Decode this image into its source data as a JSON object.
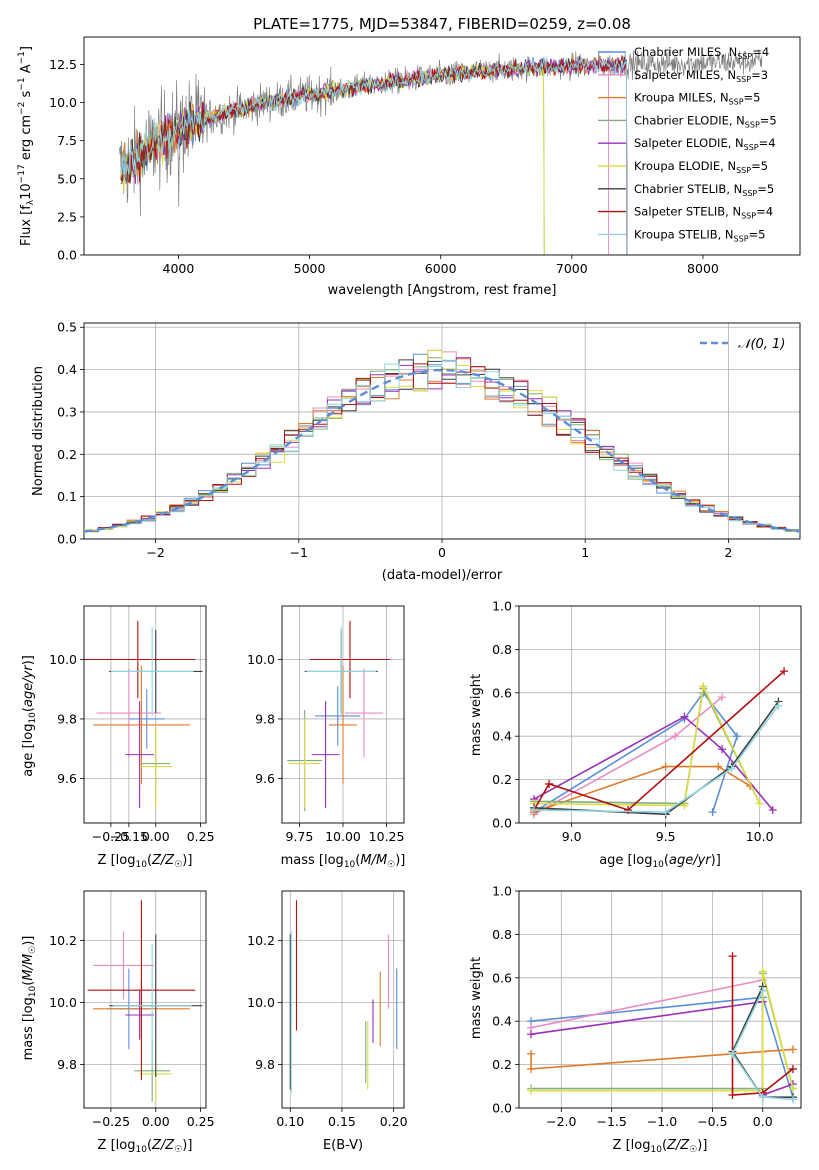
{
  "figure": {
    "title": "PLATE=1775, MJD=53847, FIBERID=0259, z=0.08"
  },
  "colors": {
    "Chabrier MILES": "#5a8fd8",
    "Salpeter MILES": "#e88cc4",
    "Kroupa MILES": "#e07b2a",
    "Chabrier ELODIE": "#7fae7f",
    "Salpeter ELODIE": "#9a2fb8",
    "Kroupa ELODIE": "#dcdc40",
    "Chabrier STELIB": "#404040",
    "Salpeter STELIB": "#b01010",
    "Kroupa STELIB": "#8fd6e0",
    "data": "#808080",
    "normal": "#5a8fd8",
    "grid": "#b0b0b0"
  },
  "chart_data": [
    {
      "id": "spectrum",
      "type": "line",
      "title": "PLATE=1775, MJD=53847, FIBERID=0259, z=0.08",
      "xlabel": "wavelength [Angstrom, rest frame]",
      "ylabel": "Flux [f_λ 10^-17 erg cm^-2 s^-1 A^-1]",
      "xlim": [
        3280,
        8740
      ],
      "ylim": [
        0,
        14.3
      ],
      "xticks": [
        4000,
        5000,
        6000,
        7000,
        8000
      ],
      "yticks": [
        0.0,
        2.5,
        5.0,
        7.5,
        10.0,
        12.5
      ],
      "grid": false,
      "legend_position": "top-right",
      "legend": [
        {
          "name": "Chabrier MILES",
          "nssp": "4"
        },
        {
          "name": "Salpeter MILES",
          "nssp": "3"
        },
        {
          "name": "Kroupa MILES",
          "nssp": "5"
        },
        {
          "name": "Chabrier ELODIE",
          "nssp": "5"
        },
        {
          "name": "Salpeter ELODIE",
          "nssp": "4"
        },
        {
          "name": "Kroupa ELODIE",
          "nssp": "5"
        },
        {
          "name": "Chabrier STELIB",
          "nssp": "5"
        },
        {
          "name": "Salpeter STELIB",
          "nssp": "4"
        },
        {
          "name": "Kroupa STELIB",
          "nssp": "5"
        }
      ],
      "continuum": {
        "x": [
          3550,
          3700,
          3900,
          4100,
          4300,
          4600,
          5000,
          5500,
          6000,
          6500,
          7000,
          7400,
          8000,
          8450
        ],
        "y": [
          5.5,
          6.5,
          7.8,
          8.6,
          9.2,
          9.9,
          10.5,
          11.2,
          11.8,
          12.2,
          12.4,
          12.5,
          12.6,
          12.7
        ]
      }
    },
    {
      "id": "residuals",
      "type": "line",
      "xlabel": "(data-model)/error",
      "ylabel": "Normed distribution",
      "xlim": [
        -2.5,
        2.5
      ],
      "ylim": [
        0,
        0.51
      ],
      "xticks": [
        -2,
        -1,
        0,
        1,
        2
      ],
      "yticks": [
        0.0,
        0.1,
        0.2,
        0.3,
        0.4,
        0.5
      ],
      "grid": true,
      "legend_position": "top-right",
      "legend": [
        "𝒩(0, 1)"
      ],
      "normal": {
        "mean": 0,
        "sigma": 1
      }
    },
    {
      "id": "age-vs-Z",
      "type": "scatter",
      "xlabel": "Z [log10(Z/Z☉)]",
      "ylabel": "age [log10(age/yr)]",
      "xlim": [
        -0.4,
        0.28
      ],
      "ylim": [
        9.45,
        10.18
      ],
      "xticks": [
        -0.25,
        -0.15,
        0.0,
        0.25
      ],
      "xticklabels": [
        "−0.25",
        "−0.15",
        "0.00",
        "0.25"
      ],
      "yticks": [
        9.6,
        9.8,
        10.0
      ],
      "grid": true,
      "points": [
        {
          "series": "Chabrier MILES",
          "x": -0.05,
          "y": 9.8,
          "xerr": 0.1,
          "yerr": 0.1
        },
        {
          "series": "Salpeter MILES",
          "x": -0.15,
          "y": 9.82,
          "xerr": 0.18,
          "yerr": 0.15
        },
        {
          "series": "Kroupa MILES",
          "x": -0.08,
          "y": 9.78,
          "xerr": 0.27,
          "yerr": 0.2
        },
        {
          "series": "Chabrier ELODIE",
          "x": 0.0,
          "y": 9.65,
          "xerr": 0.08,
          "yerr": 0.12
        },
        {
          "series": "Salpeter ELODIE",
          "x": -0.09,
          "y": 9.68,
          "xerr": 0.08,
          "yerr": 0.18
        },
        {
          "series": "Kroupa ELODIE",
          "x": 0.0,
          "y": 9.64,
          "xerr": 0.09,
          "yerr": 0.14
        },
        {
          "series": "Chabrier STELIB",
          "x": 0.0,
          "y": 9.96,
          "xerr": 0.26,
          "yerr": 0.14
        },
        {
          "series": "Salpeter STELIB",
          "x": -0.1,
          "y": 10.0,
          "xerr": 0.32,
          "yerr": 0.13
        },
        {
          "series": "Kroupa STELIB",
          "x": -0.02,
          "y": 9.96,
          "xerr": 0.23,
          "yerr": 0.15
        }
      ]
    },
    {
      "id": "age-vs-mass",
      "type": "scatter",
      "xlabel": "mass [log10(M/M☉)]",
      "xlim": [
        9.65,
        10.35
      ],
      "ylim": [
        9.45,
        10.18
      ],
      "xticks": [
        9.75,
        10.0,
        10.25
      ],
      "xticklabels": [
        "9.75",
        "10.00",
        "10.25"
      ],
      "yticks": [
        9.6,
        9.8,
        10.0
      ],
      "grid": true,
      "points": [
        {
          "series": "Chabrier MILES",
          "x": 9.97,
          "y": 9.81,
          "xerr": 0.13,
          "yerr": 0.1
        },
        {
          "series": "Salpeter MILES",
          "x": 10.12,
          "y": 9.82,
          "xerr": 0.11,
          "yerr": 0.15
        },
        {
          "series": "Kroupa MILES",
          "x": 10.0,
          "y": 9.78,
          "xerr": 0.08,
          "yerr": 0.2
        },
        {
          "series": "Chabrier ELODIE",
          "x": 9.78,
          "y": 9.66,
          "xerr": 0.1,
          "yerr": 0.17
        },
        {
          "series": "Salpeter ELODIE",
          "x": 9.9,
          "y": 9.68,
          "xerr": 0.08,
          "yerr": 0.18
        },
        {
          "series": "Kroupa ELODIE",
          "x": 9.78,
          "y": 9.65,
          "xerr": 0.09,
          "yerr": 0.15
        },
        {
          "series": "Chabrier STELIB",
          "x": 9.99,
          "y": 9.96,
          "xerr": 0.21,
          "yerr": 0.14
        },
        {
          "series": "Salpeter STELIB",
          "x": 10.04,
          "y": 10.0,
          "xerr": 0.23,
          "yerr": 0.13
        },
        {
          "series": "Kroupa STELIB",
          "x": 9.99,
          "y": 9.96,
          "xerr": 0.2,
          "yerr": 0.15
        }
      ]
    },
    {
      "id": "weight-vs-age",
      "type": "line",
      "xlabel": "age [log10(age/yr)]",
      "ylabel": "mass weight",
      "xlim": [
        8.72,
        10.22
      ],
      "ylim": [
        0,
        1
      ],
      "xticks": [
        9.0,
        9.5,
        10.0
      ],
      "yticks": [
        0.0,
        0.2,
        0.4,
        0.6,
        0.8,
        1.0
      ],
      "grid": true,
      "series": [
        {
          "name": "Chabrier MILES",
          "x": [
            8.8,
            9.6,
            9.7,
            9.88,
            9.75
          ],
          "y": [
            0.05,
            0.48,
            0.6,
            0.4,
            0.05
          ]
        },
        {
          "name": "Salpeter MILES",
          "x": [
            8.8,
            9.55,
            9.8
          ],
          "y": [
            0.04,
            0.4,
            0.58
          ]
        },
        {
          "name": "Kroupa MILES",
          "x": [
            8.8,
            9.5,
            9.78,
            9.95
          ],
          "y": [
            0.05,
            0.26,
            0.26,
            0.17
          ]
        },
        {
          "name": "Chabrier ELODIE",
          "x": [
            8.8,
            9.6,
            9.7,
            10.0
          ],
          "y": [
            0.1,
            0.09,
            0.62,
            0.09
          ]
        },
        {
          "name": "Salpeter ELODIE",
          "x": [
            8.8,
            9.6,
            9.8,
            10.07
          ],
          "y": [
            0.11,
            0.49,
            0.34,
            0.06
          ]
        },
        {
          "name": "Kroupa ELODIE",
          "x": [
            8.8,
            9.6,
            9.7,
            10.0
          ],
          "y": [
            0.09,
            0.08,
            0.63,
            0.09
          ]
        },
        {
          "name": "Chabrier STELIB",
          "x": [
            8.8,
            9.5,
            9.85,
            10.1
          ],
          "y": [
            0.07,
            0.04,
            0.26,
            0.56
          ]
        },
        {
          "name": "Salpeter STELIB",
          "x": [
            8.8,
            8.88,
            9.3,
            10.13
          ],
          "y": [
            0.06,
            0.18,
            0.06,
            0.7
          ]
        },
        {
          "name": "Kroupa STELIB",
          "x": [
            8.8,
            9.5,
            9.85,
            10.1
          ],
          "y": [
            0.06,
            0.05,
            0.25,
            0.54
          ]
        }
      ]
    },
    {
      "id": "mass-vs-Z",
      "type": "scatter",
      "xlabel": "Z [log10(Z/Z☉)]",
      "ylabel": "mass [log10(M/M☉)]",
      "xlim": [
        -0.4,
        0.28
      ],
      "ylim": [
        9.66,
        10.36
      ],
      "xticks": [
        -0.25,
        0.0,
        0.25
      ],
      "xticklabels": [
        "−0.25",
        "0.00",
        "0.25"
      ],
      "yticks": [
        9.8,
        10.0,
        10.2
      ],
      "grid": true,
      "points": [
        {
          "series": "Chabrier MILES",
          "x": -0.15,
          "y": 9.98,
          "xerr": 0.12,
          "yerr": 0.13
        },
        {
          "series": "Salpeter MILES",
          "x": -0.18,
          "y": 10.12,
          "xerr": 0.17,
          "yerr": 0.11
        },
        {
          "series": "Kroupa MILES",
          "x": -0.08,
          "y": 9.98,
          "xerr": 0.27,
          "yerr": 0.09
        },
        {
          "series": "Chabrier ELODIE",
          "x": -0.02,
          "y": 9.78,
          "xerr": 0.1,
          "yerr": 0.1
        },
        {
          "series": "Salpeter ELODIE",
          "x": -0.09,
          "y": 9.96,
          "xerr": 0.08,
          "yerr": 0.08
        },
        {
          "series": "Kroupa ELODIE",
          "x": 0.0,
          "y": 9.77,
          "xerr": 0.09,
          "yerr": 0.09
        },
        {
          "series": "Chabrier STELIB",
          "x": 0.0,
          "y": 9.99,
          "xerr": 0.26,
          "yerr": 0.23
        },
        {
          "series": "Salpeter STELIB",
          "x": -0.08,
          "y": 10.04,
          "xerr": 0.3,
          "yerr": 0.29
        },
        {
          "series": "Kroupa STELIB",
          "x": -0.02,
          "y": 9.99,
          "xerr": 0.22,
          "yerr": 0.2
        }
      ]
    },
    {
      "id": "mass-vs-EBV",
      "type": "scatter",
      "xlabel": "E(B-V)",
      "xlim": [
        0.092,
        0.21
      ],
      "ylim": [
        9.66,
        10.36
      ],
      "xticks": [
        0.1,
        0.15,
        0.2
      ],
      "xticklabels": [
        "0.10",
        "0.15",
        "0.20"
      ],
      "yticks": [
        9.8,
        10.0,
        10.2
      ],
      "grid": true,
      "points": [
        {
          "series": "Chabrier MILES",
          "x": 0.203,
          "y": 9.98,
          "xerr": 0,
          "yerr": 0.13
        },
        {
          "series": "Salpeter MILES",
          "x": 0.195,
          "y": 10.1,
          "xerr": 0,
          "yerr": 0.12
        },
        {
          "series": "Kroupa MILES",
          "x": 0.187,
          "y": 9.98,
          "xerr": 0,
          "yerr": 0.12
        },
        {
          "series": "Chabrier ELODIE",
          "x": 0.173,
          "y": 9.84,
          "xerr": 0,
          "yerr": 0.1
        },
        {
          "series": "Salpeter ELODIE",
          "x": 0.18,
          "y": 9.94,
          "xerr": 0,
          "yerr": 0.07
        },
        {
          "series": "Kroupa ELODIE",
          "x": 0.175,
          "y": 9.83,
          "xerr": 0,
          "yerr": 0.11
        },
        {
          "series": "Chabrier STELIB",
          "x": 0.1,
          "y": 9.97,
          "xerr": 0,
          "yerr": 0.25
        },
        {
          "series": "Salpeter STELIB",
          "x": 0.106,
          "y": 10.12,
          "xerr": 0,
          "yerr": 0.21
        },
        {
          "series": "Kroupa STELIB",
          "x": 0.101,
          "y": 9.97,
          "xerr": 0,
          "yerr": 0.26
        }
      ]
    },
    {
      "id": "weight-vs-Z",
      "type": "line",
      "xlabel": "Z [log10(Z/Z☉)]",
      "ylabel": "mass weight",
      "xlim": [
        -2.42,
        0.38
      ],
      "ylim": [
        0,
        1
      ],
      "xticks": [
        -2.0,
        -1.5,
        -1.0,
        -0.5,
        0.0
      ],
      "xticklabels": [
        "−2.0",
        "−1.5",
        "−1.0",
        "−0.5",
        "0.0"
      ],
      "yticks": [
        0.0,
        0.2,
        0.4,
        0.6,
        0.8,
        1.0
      ],
      "grid": true,
      "series": [
        {
          "name": "Chabrier MILES",
          "x": [
            -2.3,
            0.0,
            0.3
          ],
          "y": [
            0.4,
            0.51,
            0.05
          ]
        },
        {
          "name": "Salpeter MILES",
          "x": [
            -2.3,
            0.0
          ],
          "y": [
            0.37,
            0.59
          ]
        },
        {
          "name": "Kroupa MILES",
          "x": [
            -2.3,
            -2.3,
            0.0,
            0.3
          ],
          "y": [
            0.25,
            0.18,
            0.26,
            0.27
          ]
        },
        {
          "name": "Chabrier ELODIE",
          "x": [
            -2.3,
            0.0,
            0.0,
            0.3
          ],
          "y": [
            0.09,
            0.09,
            0.62,
            0.09
          ]
        },
        {
          "name": "Salpeter ELODIE",
          "x": [
            -2.3,
            0.0,
            0.0,
            0.3
          ],
          "y": [
            0.34,
            0.49,
            0.06,
            0.11
          ]
        },
        {
          "name": "Kroupa ELODIE",
          "x": [
            -2.3,
            0.0,
            0.0,
            0.3
          ],
          "y": [
            0.08,
            0.08,
            0.63,
            0.09
          ]
        },
        {
          "name": "Chabrier STELIB",
          "x": [
            0.0,
            -0.3,
            0.0,
            0.3
          ],
          "y": [
            0.56,
            0.26,
            0.05,
            0.05
          ]
        },
        {
          "name": "Salpeter STELIB",
          "x": [
            -0.3,
            -0.3,
            0.0,
            0.3
          ],
          "y": [
            0.7,
            0.06,
            0.07,
            0.18
          ]
        },
        {
          "name": "Kroupa STELIB",
          "x": [
            0.0,
            -0.3,
            0.0,
            0.3
          ],
          "y": [
            0.54,
            0.25,
            0.05,
            0.04
          ]
        }
      ]
    }
  ]
}
